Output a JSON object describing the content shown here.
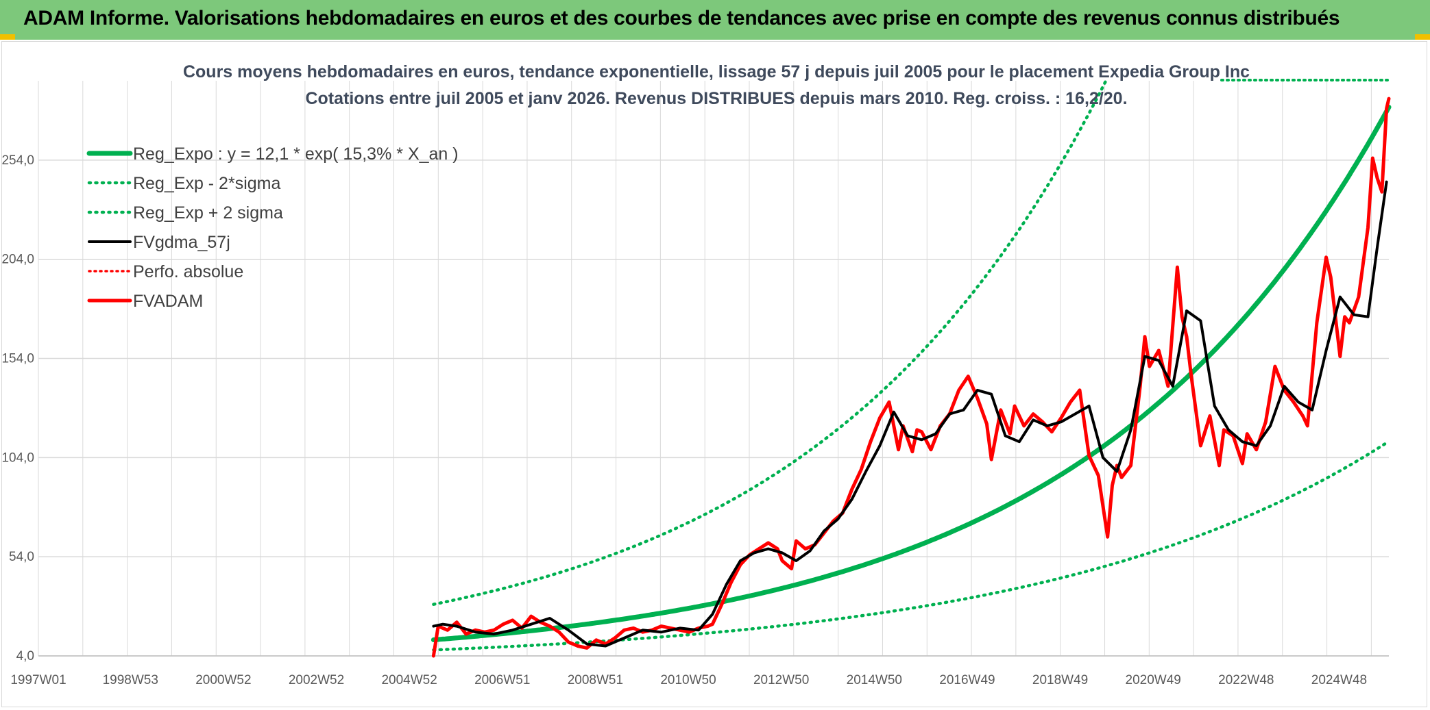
{
  "header": {
    "title": "ADAM Informe. Valorisations hebdomadaires en euros et des courbes de tendances avec prise en compte des revenus connus distribués"
  },
  "colors": {
    "header_bg": "#7dc87b",
    "green": "#00b050",
    "red": "#ff0000",
    "black": "#000000",
    "grid": "#d9d9d9"
  },
  "chart_data": {
    "type": "line",
    "title": "Cours moyens hebdomadaires en euros, tendance exponentielle, lissage 57 j depuis juil 2005 pour le placement Expedia Group Inc",
    "subtitle": "Cotations entre juil 2005 et janv 2026. Revenus DISTRIBUES depuis mars 2010. Reg. croiss. : 16,2/20.",
    "xlabel": "",
    "ylabel": "",
    "x_ticks": [
      "1997W01",
      "1998W53",
      "2000W52",
      "2002W52",
      "2004W52",
      "2006W51",
      "2008W51",
      "2010W50",
      "2012W50",
      "2014W50",
      "2016W49",
      "2018W49",
      "2020W49",
      "2022W48",
      "2024W48"
    ],
    "x_range": [
      1997.0,
      2026.05
    ],
    "y_ticks": [
      "4,0",
      "54,0",
      "104,0",
      "154,0",
      "204,0",
      "254,0"
    ],
    "ylim": [
      4,
      294
    ],
    "grid": true,
    "legend_position": "top-left",
    "series": [
      {
        "name": "Reg_Expo : y = 12,1 * exp( 15,3% *  X_an )",
        "style": "solid-green-thick",
        "formula": {
          "a": 12.1,
          "r": 0.153,
          "t0": 2005.5,
          "x_start": 2005.5,
          "x_end": 2026.05
        }
      },
      {
        "name": "Reg_Exp - 2*sigma",
        "style": "dotted-green",
        "formula": {
          "a": 7.0,
          "r": 0.135,
          "t0": 2005.5,
          "x_start": 2005.5,
          "x_end": 2026.05
        }
      },
      {
        "name": "Reg_Exp + 2 sigma",
        "style": "dotted-green",
        "formula": {
          "a": 30.0,
          "r": 0.1578,
          "t0": 2005.5,
          "x_start": 2005.5,
          "x_end": 2026.05
        }
      },
      {
        "name": "FVgdma_57j",
        "style": "solid-black",
        "x": [
          2005.5,
          2005.7,
          2006.0,
          2006.4,
          2006.8,
          2007.2,
          2007.6,
          2008.0,
          2008.4,
          2008.8,
          2009.2,
          2009.6,
          2010.0,
          2010.4,
          2010.8,
          2011.2,
          2011.5,
          2011.8,
          2012.1,
          2012.4,
          2012.7,
          2013.0,
          2013.3,
          2013.6,
          2013.9,
          2014.2,
          2014.5,
          2014.8,
          2015.1,
          2015.4,
          2015.7,
          2016.0,
          2016.3,
          2016.6,
          2016.9,
          2017.2,
          2017.5,
          2017.8,
          2018.1,
          2018.4,
          2018.7,
          2019.0,
          2019.3,
          2019.6,
          2019.9,
          2020.2,
          2020.5,
          2020.8,
          2021.1,
          2021.4,
          2021.7,
          2022.0,
          2022.3,
          2022.6,
          2022.9,
          2023.2,
          2023.5,
          2023.8,
          2024.1,
          2024.4,
          2024.7,
          2025.0,
          2025.3,
          2025.6,
          2025.8,
          2026.0
        ],
        "y": [
          19,
          20,
          19,
          16,
          15,
          17,
          20,
          23,
          17,
          10,
          9,
          13,
          17,
          16,
          18,
          17,
          25,
          40,
          52,
          56,
          58,
          56,
          52,
          57,
          67,
          73,
          83,
          97,
          110,
          127,
          115,
          113,
          116,
          126,
          128,
          138,
          136,
          115,
          112,
          123,
          120,
          122,
          126,
          130,
          104,
          97,
          118,
          155,
          153,
          140,
          178,
          173,
          130,
          118,
          112,
          110,
          120,
          140,
          132,
          128,
          158,
          185,
          176,
          175,
          210,
          243
        ]
      },
      {
        "name": "Perfo. absolue",
        "style": "dotted-red",
        "x": [],
        "y": []
      },
      {
        "name": "FVADAM",
        "style": "solid-red-thick",
        "x": [
          2005.5,
          2005.6,
          2005.8,
          2006.0,
          2006.2,
          2006.4,
          2006.6,
          2006.8,
          2007.0,
          2007.2,
          2007.4,
          2007.6,
          2007.8,
          2008.0,
          2008.2,
          2008.4,
          2008.6,
          2008.8,
          2009.0,
          2009.2,
          2009.4,
          2009.6,
          2009.8,
          2010.0,
          2010.2,
          2010.4,
          2010.6,
          2010.8,
          2011.0,
          2011.2,
          2011.4,
          2011.5,
          2011.7,
          2011.9,
          2012.1,
          2012.3,
          2012.5,
          2012.7,
          2012.9,
          2013.0,
          2013.2,
          2013.3,
          2013.5,
          2013.7,
          2013.9,
          2014.1,
          2014.3,
          2014.5,
          2014.7,
          2014.9,
          2015.1,
          2015.3,
          2015.5,
          2015.6,
          2015.8,
          2015.9,
          2016.0,
          2016.2,
          2016.4,
          2016.6,
          2016.8,
          2017.0,
          2017.2,
          2017.4,
          2017.5,
          2017.7,
          2017.9,
          2018.0,
          2018.2,
          2018.4,
          2018.6,
          2018.8,
          2019.0,
          2019.2,
          2019.4,
          2019.6,
          2019.8,
          2020.0,
          2020.1,
          2020.2,
          2020.3,
          2020.5,
          2020.7,
          2020.8,
          2020.9,
          2021.1,
          2021.3,
          2021.5,
          2021.6,
          2021.7,
          2021.8,
          2022.0,
          2022.2,
          2022.4,
          2022.5,
          2022.7,
          2022.9,
          2023.0,
          2023.2,
          2023.4,
          2023.6,
          2023.8,
          2024.0,
          2024.2,
          2024.3,
          2024.5,
          2024.7,
          2024.8,
          2025.0,
          2025.1,
          2025.2,
          2025.4,
          2025.6,
          2025.7,
          2025.8,
          2025.9,
          2026.0,
          2026.05
        ],
        "y": [
          4,
          19,
          17,
          21,
          15,
          17,
          16,
          17,
          20,
          22,
          18,
          24,
          21,
          19,
          16,
          11,
          9,
          8,
          12,
          10,
          13,
          17,
          18,
          16,
          17,
          19,
          18,
          17,
          16,
          18,
          19,
          20,
          30,
          41,
          50,
          55,
          58,
          61,
          58,
          52,
          48,
          62,
          58,
          60,
          66,
          72,
          76,
          88,
          98,
          112,
          124,
          132,
          108,
          120,
          107,
          118,
          117,
          108,
          120,
          126,
          138,
          145,
          134,
          121,
          103,
          128,
          116,
          130,
          120,
          126,
          122,
          117,
          124,
          132,
          138,
          105,
          95,
          64,
          90,
          100,
          94,
          100,
          140,
          165,
          150,
          158,
          140,
          200,
          175,
          165,
          145,
          110,
          125,
          100,
          118,
          115,
          101,
          116,
          108,
          122,
          150,
          138,
          132,
          125,
          120,
          172,
          205,
          195,
          155,
          175,
          172,
          185,
          220,
          255,
          245,
          238,
          280,
          285
        ]
      }
    ]
  }
}
